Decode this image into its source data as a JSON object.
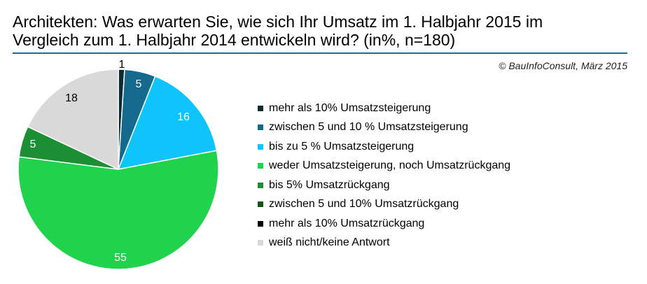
{
  "title": {
    "line1": "Architekten: Was erwarten Sie, wie sich Ihr Umsatz im 1. Halbjahr 2015 im",
    "line2": "Vergleich zum 1. Halbjahr 2014 entwickeln wird? (in%, n=180)"
  },
  "credit": "© BauInfoConsult,  März 2015",
  "chart_data": {
    "type": "pie",
    "title": "Architekten: Was erwarten Sie, wie sich Ihr Umsatz im 1. Halbjahr 2015 im Vergleich zum 1. Halbjahr 2014 entwickeln wird? (in%, n=180)",
    "unit": "%",
    "n": 180,
    "legend_position": "right",
    "slices": [
      {
        "label": "mehr als 10% Umsatzsteigerung",
        "value": 1,
        "display": "1",
        "color": "#0d2b33"
      },
      {
        "label": "zwischen 5 und 10 % Umsatzsteigerung",
        "value": 5,
        "display": "5",
        "color": "#15698c"
      },
      {
        "label": "bis zu 5 % Umsatzsteigerung",
        "value": 16,
        "display": "16",
        "color": "#0fc4fa"
      },
      {
        "label": "weder Umsatzsteigerung, noch Umsatzrückgang",
        "value": 55,
        "display": "55",
        "color": "#21d24c"
      },
      {
        "label": "bis 5% Umsatzrückgang",
        "value": 5,
        "display": "5",
        "color": "#1c8f34"
      },
      {
        "label": "zwischen 5 und 10% Umsatzrückgang",
        "value": 0,
        "display": "",
        "color": "#11521f"
      },
      {
        "label": "mehr als 10% Umsatzrückgang",
        "value": 0,
        "display": "",
        "color": "#000000"
      },
      {
        "label": "weiß nicht/keine Antwort",
        "value": 18,
        "display": "18",
        "color": "#d9d9d9"
      }
    ]
  }
}
